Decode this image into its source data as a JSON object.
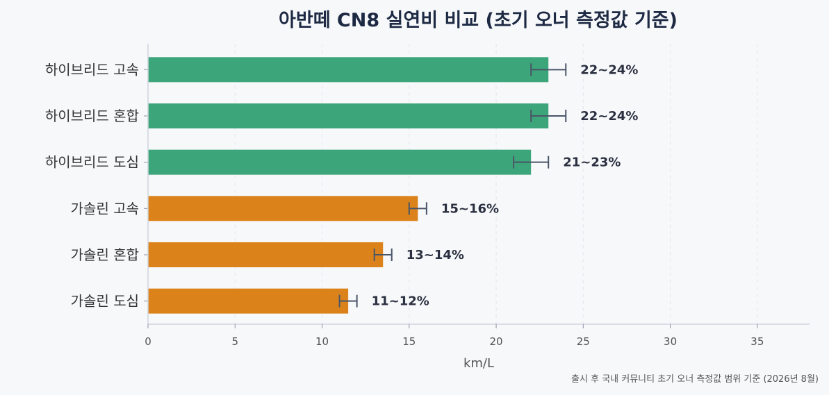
{
  "chart_data": {
    "type": "bar",
    "orientation": "horizontal",
    "title": "아반떼 CN8 실연비 비교 (초기 오너 측정값 기준)",
    "xlabel": "km/L",
    "ylabel": "",
    "xlim": [
      0,
      38
    ],
    "xticks": [
      0,
      5,
      10,
      15,
      20,
      25,
      30,
      35
    ],
    "grid": "x-dashed",
    "categories": [
      "하이브리드 고속",
      "하이브리드 혼합",
      "하이브리드 도심",
      "가솔린 고속",
      "가솔린 혼합",
      "가솔린 도심"
    ],
    "values": [
      23,
      23,
      22,
      15.5,
      13.5,
      11.5
    ],
    "error_low": [
      22,
      22,
      21,
      15,
      13,
      11
    ],
    "error_high": [
      24,
      24,
      23,
      16,
      14,
      12
    ],
    "data_labels": [
      "22~24%",
      "22~24%",
      "21~23%",
      "15~16%",
      "13~14%",
      "11~12%"
    ],
    "groups": [
      "hybrid",
      "hybrid",
      "hybrid",
      "gasoline",
      "gasoline",
      "gasoline"
    ],
    "colors": {
      "hybrid": "#3ca57a",
      "gasoline": "#db831a",
      "error": "#4a5568"
    },
    "footnote": "출시 후 국내 커뮤니티 초기 오너 측정값 범위 기준 (2026년 8월)"
  }
}
